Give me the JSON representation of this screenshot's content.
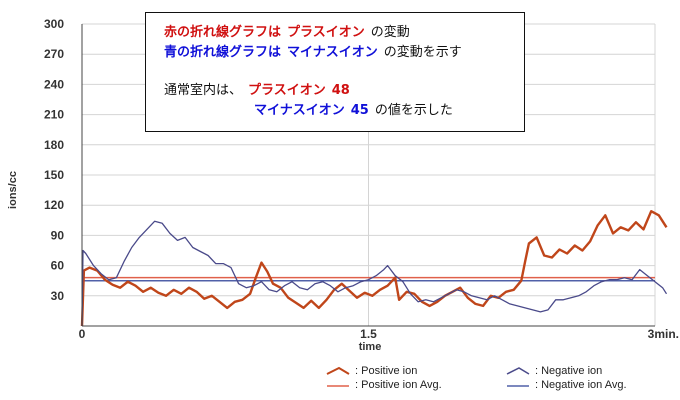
{
  "chart_data": {
    "type": "line",
    "ylabel": "ions/cc",
    "xlabel": "time",
    "xlim": [
      0,
      3
    ],
    "ylim": [
      0,
      300
    ],
    "yticks": [
      30,
      60,
      90,
      120,
      150,
      180,
      210,
      240,
      270,
      300
    ],
    "xtick_labels": [
      {
        "x": 0,
        "label": "0"
      },
      {
        "x": 1.5,
        "label": "1.5"
      },
      {
        "x": 3,
        "label": "3min."
      }
    ],
    "grid": true,
    "series": [
      {
        "name": "Positive ion",
        "color": "#c0461a",
        "kind": "line",
        "points": [
          [
            0,
            0
          ],
          [
            0.01,
            55
          ],
          [
            0.04,
            58
          ],
          [
            0.08,
            55
          ],
          [
            0.12,
            46
          ],
          [
            0.16,
            41
          ],
          [
            0.2,
            38
          ],
          [
            0.24,
            44
          ],
          [
            0.28,
            40
          ],
          [
            0.32,
            34
          ],
          [
            0.36,
            38
          ],
          [
            0.4,
            33
          ],
          [
            0.44,
            30
          ],
          [
            0.48,
            36
          ],
          [
            0.52,
            32
          ],
          [
            0.56,
            38
          ],
          [
            0.6,
            34
          ],
          [
            0.64,
            27
          ],
          [
            0.68,
            30
          ],
          [
            0.72,
            24
          ],
          [
            0.76,
            18
          ],
          [
            0.8,
            24
          ],
          [
            0.84,
            26
          ],
          [
            0.88,
            32
          ],
          [
            0.91,
            48
          ],
          [
            0.94,
            63
          ],
          [
            0.97,
            54
          ],
          [
            1.0,
            42
          ],
          [
            1.04,
            38
          ],
          [
            1.08,
            28
          ],
          [
            1.12,
            23
          ],
          [
            1.16,
            18
          ],
          [
            1.2,
            25
          ],
          [
            1.24,
            18
          ],
          [
            1.28,
            26
          ],
          [
            1.32,
            36
          ],
          [
            1.36,
            42
          ],
          [
            1.4,
            35
          ],
          [
            1.44,
            28
          ],
          [
            1.48,
            33
          ],
          [
            1.52,
            30
          ],
          [
            1.56,
            36
          ],
          [
            1.6,
            40
          ],
          [
            1.64,
            48
          ],
          [
            1.66,
            26
          ],
          [
            1.7,
            34
          ],
          [
            1.74,
            32
          ],
          [
            1.78,
            24
          ],
          [
            1.82,
            20
          ],
          [
            1.86,
            24
          ],
          [
            1.9,
            30
          ],
          [
            1.94,
            34
          ],
          [
            1.98,
            38
          ],
          [
            2.02,
            28
          ],
          [
            2.06,
            22
          ],
          [
            2.1,
            20
          ],
          [
            2.14,
            30
          ],
          [
            2.18,
            28
          ],
          [
            2.22,
            34
          ],
          [
            2.26,
            36
          ],
          [
            2.3,
            45
          ],
          [
            2.32,
            64
          ],
          [
            2.34,
            82
          ],
          [
            2.38,
            88
          ],
          [
            2.42,
            70
          ],
          [
            2.46,
            68
          ],
          [
            2.5,
            76
          ],
          [
            2.54,
            72
          ],
          [
            2.58,
            80
          ],
          [
            2.62,
            75
          ],
          [
            2.66,
            84
          ],
          [
            2.7,
            100
          ],
          [
            2.74,
            110
          ],
          [
            2.78,
            92
          ],
          [
            2.82,
            98
          ],
          [
            2.86,
            95
          ],
          [
            2.9,
            103
          ],
          [
            2.94,
            96
          ],
          [
            2.98,
            114
          ],
          [
            3.02,
            110
          ],
          [
            3.06,
            98
          ]
        ]
      },
      {
        "name": "Positive ion Avg.",
        "color": "#e0604a",
        "kind": "hline",
        "value": 48
      },
      {
        "name": "Negative ion",
        "color": "#4a4a8a",
        "kind": "line",
        "points": [
          [
            0,
            0
          ],
          [
            0.005,
            75
          ],
          [
            0.02,
            72
          ],
          [
            0.06,
            60
          ],
          [
            0.1,
            52
          ],
          [
            0.14,
            46
          ],
          [
            0.18,
            48
          ],
          [
            0.22,
            64
          ],
          [
            0.26,
            78
          ],
          [
            0.3,
            88
          ],
          [
            0.34,
            96
          ],
          [
            0.38,
            104
          ],
          [
            0.42,
            102
          ],
          [
            0.46,
            92
          ],
          [
            0.5,
            85
          ],
          [
            0.54,
            88
          ],
          [
            0.58,
            78
          ],
          [
            0.62,
            74
          ],
          [
            0.66,
            70
          ],
          [
            0.7,
            62
          ],
          [
            0.74,
            62
          ],
          [
            0.78,
            58
          ],
          [
            0.82,
            42
          ],
          [
            0.86,
            38
          ],
          [
            0.9,
            40
          ],
          [
            0.94,
            44
          ],
          [
            0.98,
            36
          ],
          [
            1.02,
            34
          ],
          [
            1.06,
            40
          ],
          [
            1.1,
            44
          ],
          [
            1.14,
            38
          ],
          [
            1.18,
            36
          ],
          [
            1.22,
            42
          ],
          [
            1.26,
            44
          ],
          [
            1.3,
            40
          ],
          [
            1.34,
            34
          ],
          [
            1.38,
            38
          ],
          [
            1.42,
            40
          ],
          [
            1.46,
            44
          ],
          [
            1.5,
            46
          ],
          [
            1.54,
            50
          ],
          [
            1.58,
            56
          ],
          [
            1.6,
            60
          ],
          [
            1.64,
            50
          ],
          [
            1.68,
            44
          ],
          [
            1.72,
            32
          ],
          [
            1.76,
            24
          ],
          [
            1.8,
            26
          ],
          [
            1.84,
            24
          ],
          [
            1.88,
            28
          ],
          [
            1.92,
            32
          ],
          [
            1.96,
            36
          ],
          [
            2.0,
            34
          ],
          [
            2.04,
            30
          ],
          [
            2.08,
            28
          ],
          [
            2.12,
            26
          ],
          [
            2.16,
            30
          ],
          [
            2.2,
            26
          ],
          [
            2.24,
            22
          ],
          [
            2.28,
            20
          ],
          [
            2.32,
            18
          ],
          [
            2.36,
            16
          ],
          [
            2.4,
            14
          ],
          [
            2.44,
            16
          ],
          [
            2.48,
            26
          ],
          [
            2.52,
            26
          ],
          [
            2.56,
            28
          ],
          [
            2.6,
            30
          ],
          [
            2.64,
            34
          ],
          [
            2.68,
            40
          ],
          [
            2.72,
            44
          ],
          [
            2.76,
            46
          ],
          [
            2.8,
            46
          ],
          [
            2.84,
            48
          ],
          [
            2.88,
            46
          ],
          [
            2.92,
            56
          ],
          [
            2.96,
            50
          ],
          [
            3.0,
            44
          ],
          [
            3.04,
            38
          ],
          [
            3.06,
            32
          ]
        ]
      },
      {
        "name": "Negative ion Avg.",
        "color": "#5060a8",
        "kind": "hline",
        "value": 45
      }
    ],
    "legend": {
      "position": "bottom",
      "items": [
        {
          "label": ": Positive ion",
          "color": "#c0461a",
          "style": "zigzag"
        },
        {
          "label": ": Negative ion",
          "color": "#4a4a8a",
          "style": "zigzag"
        },
        {
          "label": ": Positive ion Avg.",
          "color": "#e0604a",
          "style": "line"
        },
        {
          "label": ": Negative ion Avg.",
          "color": "#5060a8",
          "style": "line"
        }
      ]
    },
    "annotation": {
      "line1": {
        "a": "赤の折れ線グラフは",
        "b": "プラスイオン",
        "c": "の変動"
      },
      "line2": {
        "a": "青の折れ線グラフは",
        "b": "マイナスイオン",
        "c": "の変動を示す"
      },
      "line3": {
        "a": "通常室内は、",
        "b": "プラスイオン",
        "c": "48"
      },
      "line4": {
        "a": "マイナスイオン",
        "b": "45",
        "c": "の値を示した"
      }
    }
  }
}
